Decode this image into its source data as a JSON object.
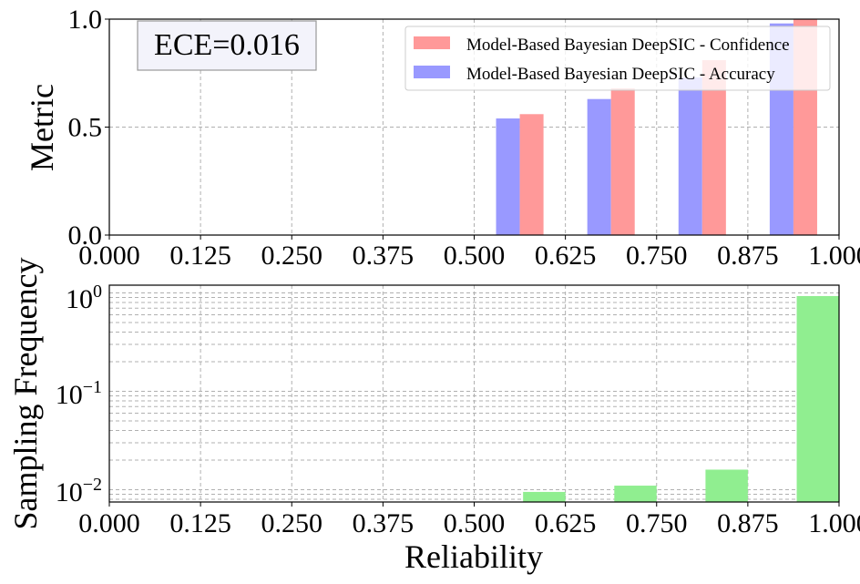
{
  "chart_data": [
    {
      "type": "bar",
      "ylabel": "Metric",
      "xlabel": "",
      "xlim": [
        0.0,
        1.0
      ],
      "ylim": [
        0.0,
        1.0
      ],
      "xticks": [
        "0.000",
        "0.125",
        "0.250",
        "0.375",
        "0.500",
        "0.625",
        "0.750",
        "0.875",
        "1.000"
      ],
      "yticks": [
        "0.0",
        "0.5",
        "1.0"
      ],
      "grid": true,
      "legend_position": "top-right",
      "annotation": "ECE=0.016",
      "series": [
        {
          "name": "Model-Based Bayesian DeepSIC - Confidence",
          "color": "#ff9999",
          "x": [
            0.5625,
            0.6875,
            0.8125,
            0.9375
          ],
          "values": [
            0.56,
            0.68,
            0.81,
            1.0
          ]
        },
        {
          "name": "Model-Based Bayesian DeepSIC - Accuracy",
          "color": "#9999ff",
          "x": [
            0.5625,
            0.6875,
            0.8125,
            0.9375
          ],
          "values": [
            0.54,
            0.63,
            0.73,
            0.98
          ]
        }
      ]
    },
    {
      "type": "bar",
      "ylabel": "Sampling Frequency",
      "xlabel": "Reliability",
      "xlim": [
        0.0,
        1.0
      ],
      "yscale": "log",
      "ylim": [
        0.0075,
        1.2
      ],
      "xticks": [
        "0.000",
        "0.125",
        "0.250",
        "0.375",
        "0.500",
        "0.625",
        "0.750",
        "0.875",
        "1.000"
      ],
      "grid": true,
      "series": [
        {
          "color": "#90ee90",
          "x": [
            0.625,
            0.75,
            0.875,
            1.0
          ],
          "values": [
            0.0095,
            0.011,
            0.016,
            0.93
          ]
        }
      ]
    }
  ]
}
